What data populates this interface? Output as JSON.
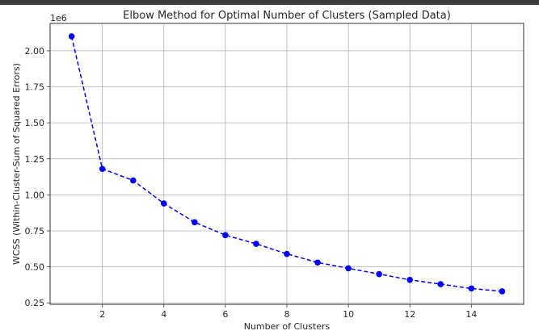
{
  "chart_data": {
    "type": "line",
    "title": "Elbow Method for Optimal Number of Clusters (Sampled Data)",
    "xlabel": "Number of Clusters",
    "ylabel": "WCSS (Within-Cluster-Sum of Squared Errors)",
    "y_offset_text": "1e6",
    "x": [
      1,
      2,
      3,
      4,
      5,
      6,
      7,
      8,
      9,
      10,
      11,
      12,
      13,
      14,
      15
    ],
    "series": [
      {
        "values": [
          2.1,
          1.18,
          1.1,
          0.94,
          0.81,
          0.72,
          0.66,
          0.59,
          0.53,
          0.49,
          0.45,
          0.41,
          0.38,
          0.35,
          0.33
        ],
        "color": "#0000ff",
        "linestyle": "dashed",
        "marker": "circle"
      }
    ],
    "xticks": [
      2,
      4,
      6,
      8,
      10,
      12,
      14
    ],
    "xtick_labels": [
      "2",
      "4",
      "6",
      "8",
      "10",
      "12",
      "14"
    ],
    "yticks": [
      0.25,
      0.5,
      0.75,
      1.0,
      1.25,
      1.5,
      1.75,
      2.0
    ],
    "ytick_labels": [
      "0.25",
      "0.50",
      "0.75",
      "1.00",
      "1.25",
      "1.50",
      "1.75",
      "2.00"
    ],
    "xlim": [
      0.3,
      15.7
    ],
    "ylim": [
      0.24,
      2.19
    ],
    "grid": true
  }
}
